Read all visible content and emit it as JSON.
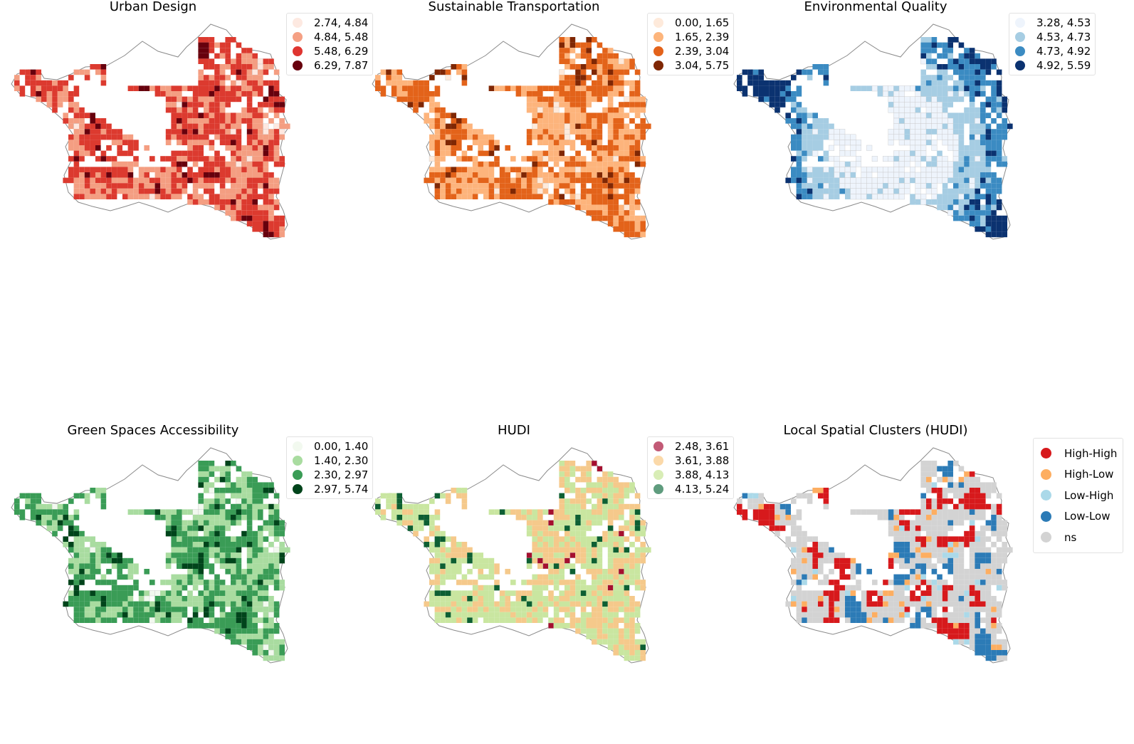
{
  "panels": [
    {
      "id": "urban-design",
      "title": "Urban Design",
      "palette": [
        "#fee8e0",
        "#f49e82",
        "#dc3a2f",
        "#67000d"
      ],
      "legend": [
        {
          "label": "2.74, 4.84",
          "color": "#fde9e1"
        },
        {
          "label": "4.84, 5.48",
          "color": "#f5a084"
        },
        {
          "label": "5.48, 6.29",
          "color": "#df3530"
        },
        {
          "label": "6.29, 7.87",
          "color": "#67000d"
        }
      ]
    },
    {
      "id": "sustainable-transportation",
      "title": "Sustainable Transportation",
      "palette": [
        "#feeadb",
        "#fdb47c",
        "#e3631a",
        "#7f2704"
      ],
      "legend": [
        {
          "label": "0.00, 1.65",
          "color": "#feeadb"
        },
        {
          "label": "1.65, 2.39",
          "color": "#fdb57c"
        },
        {
          "label": "2.39, 3.04",
          "color": "#e3621a"
        },
        {
          "label": "3.04, 5.75",
          "color": "#7f2704"
        }
      ]
    },
    {
      "id": "environmental-quality",
      "title": "Environmental Quality",
      "palette": [
        "#eef4fc",
        "#a6cde3",
        "#3b8bc2",
        "#0b3270"
      ],
      "legend": [
        {
          "label": "3.28, 4.53",
          "color": "#eef4fc"
        },
        {
          "label": "4.53, 4.73",
          "color": "#a6cde3"
        },
        {
          "label": "4.73, 4.92",
          "color": "#3b8bc2"
        },
        {
          "label": "4.92, 5.59",
          "color": "#0b3270"
        }
      ]
    },
    {
      "id": "green-spaces-accessibility",
      "title": "Green Spaces Accessibility",
      "palette": [
        "#f2f9ef",
        "#a9dca0",
        "#3a9c56",
        "#00441b"
      ],
      "legend": [
        {
          "label": "0.00, 1.40",
          "color": "#f2f9ef"
        },
        {
          "label": "1.40, 2.30",
          "color": "#a9dca0"
        },
        {
          "label": "2.30, 2.97",
          "color": "#3a9c56"
        },
        {
          "label": "2.97, 5.74",
          "color": "#00441b"
        }
      ]
    },
    {
      "id": "hudi",
      "title": "HUDI",
      "palette": [
        "#a50f2f",
        "#f5c98b",
        "#c9e6a0",
        "#0d5f33"
      ],
      "legend": [
        {
          "label": "2.48, 3.61",
          "color": "#c25a76"
        },
        {
          "label": "3.61, 3.88",
          "color": "#fbd9a9"
        },
        {
          "label": "3.88, 4.13",
          "color": "#d8edb6"
        },
        {
          "label": "4.13, 5.24",
          "color": "#5f9c7e"
        }
      ]
    },
    {
      "id": "local-spatial-clusters",
      "title": "Local Spatial Clusters (HUDI)",
      "palette": [
        "#d7191c",
        "#fdae61",
        "#abd9e9",
        "#2c7bb6",
        "#d3d3d3"
      ],
      "legend": [
        {
          "label": "High-High",
          "color": "#d7191c"
        },
        {
          "label": "High-Low",
          "color": "#fdae61"
        },
        {
          "label": "Low-High",
          "color": "#abd9e9"
        },
        {
          "label": "Low-Low",
          "color": "#2c7bb6"
        },
        {
          "label": "ns",
          "color": "#d3d3d3"
        }
      ]
    }
  ]
}
